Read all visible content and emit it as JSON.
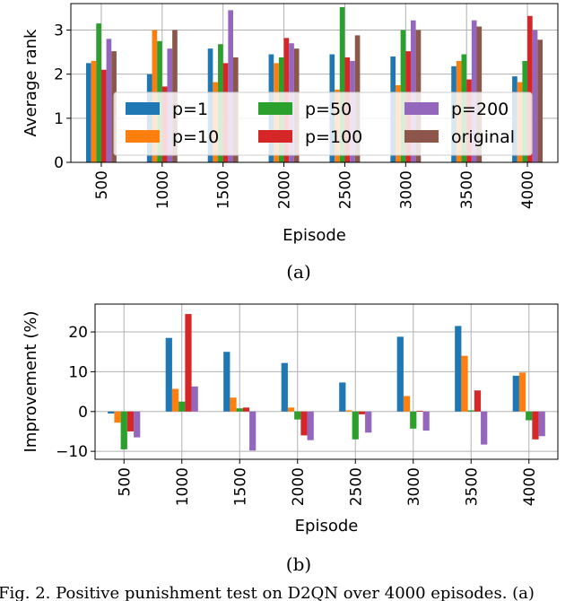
{
  "colors": {
    "p1": "#1f77b4",
    "p10": "#ff7f0e",
    "p50": "#2ca02c",
    "p100": "#d62728",
    "p200": "#9467bd",
    "original": "#8c564b"
  },
  "chart_data": [
    {
      "type": "bar",
      "panel_label": "(a)",
      "xlabel": "Episode",
      "ylabel": "Average rank",
      "ylim": [
        0,
        3.6
      ],
      "yticks": [
        0,
        1,
        2,
        3
      ],
      "grid": true,
      "legend_position": "center",
      "categories": [
        "500",
        "1000",
        "1500",
        "2000",
        "2500",
        "3000",
        "3500",
        "4000"
      ],
      "series": [
        {
          "name": "p=1",
          "color_key": "p1",
          "values": [
            2.25,
            2.0,
            2.58,
            2.45,
            2.45,
            2.4,
            2.18,
            1.95
          ]
        },
        {
          "name": "p=10",
          "color_key": "p10",
          "values": [
            2.3,
            3.0,
            1.82,
            2.25,
            1.65,
            1.75,
            2.3,
            1.82
          ]
        },
        {
          "name": "p=50",
          "color_key": "p50",
          "values": [
            3.15,
            2.75,
            2.68,
            2.38,
            3.52,
            3.0,
            2.45,
            2.3
          ]
        },
        {
          "name": "p=100",
          "color_key": "p100",
          "values": [
            2.1,
            1.72,
            2.25,
            2.82,
            2.38,
            2.52,
            1.88,
            3.32
          ]
        },
        {
          "name": "p=200",
          "color_key": "p200",
          "values": [
            2.8,
            2.58,
            3.45,
            2.7,
            2.3,
            3.22,
            3.22,
            3.0
          ]
        },
        {
          "name": "original",
          "color_key": "original",
          "values": [
            2.52,
            3.0,
            2.38,
            2.58,
            2.88,
            3.0,
            3.08,
            2.78
          ]
        }
      ]
    },
    {
      "type": "bar",
      "panel_label": "(b)",
      "xlabel": "Episode",
      "ylabel": "Improvement (%)",
      "ylim": [
        -12,
        27
      ],
      "yticks": [
        -10,
        0,
        10,
        20
      ],
      "grid": true,
      "categories": [
        "500",
        "1000",
        "1500",
        "2000",
        "2500",
        "3000",
        "3500",
        "4000"
      ],
      "series": [
        {
          "name": "p=1",
          "color_key": "p1",
          "values": [
            -0.5,
            18.5,
            15.0,
            12.2,
            7.3,
            18.8,
            21.5,
            9.0
          ]
        },
        {
          "name": "p=10",
          "color_key": "p10",
          "values": [
            -2.8,
            5.7,
            3.5,
            1.0,
            0.3,
            3.9,
            14.0,
            9.8
          ]
        },
        {
          "name": "p=50",
          "color_key": "p50",
          "values": [
            -9.5,
            2.5,
            0.8,
            -2.0,
            -7.0,
            -4.3,
            0.3,
            -2.2
          ]
        },
        {
          "name": "p=100",
          "color_key": "p100",
          "values": [
            -5.0,
            24.5,
            1.0,
            -6.0,
            -0.7,
            0.2,
            5.3,
            -7.0
          ]
        },
        {
          "name": "p=200",
          "color_key": "p200",
          "values": [
            -6.5,
            6.3,
            -9.8,
            -7.2,
            -5.3,
            -4.8,
            -8.3,
            -6.2
          ]
        }
      ]
    }
  ],
  "caption": "Fig. 2.  Positive punishment test on D2QN over 4000 episodes. (a)"
}
